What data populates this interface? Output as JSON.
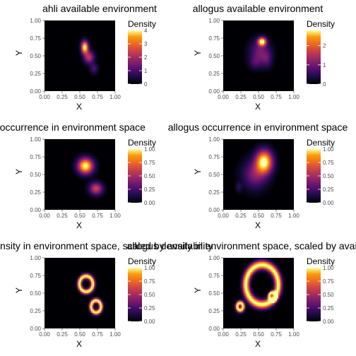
{
  "chart_data": [
    {
      "type": "heatmap",
      "title": "ahli available environment",
      "xlabel": "X",
      "ylabel": "Y",
      "xlim": [
        0,
        1
      ],
      "ylim": [
        0,
        1
      ],
      "x_ticks": [
        "0.00",
        "0.25",
        "0.50",
        "0.75",
        "1.00"
      ],
      "y_ticks": [
        "0.00",
        "0.25",
        "0.50",
        "0.75",
        "1.00"
      ],
      "legend": {
        "title": "Density",
        "range": [
          0,
          4
        ],
        "ticks": [
          "0",
          "1",
          "2",
          "3",
          "4"
        ]
      },
      "hotspots": [
        {
          "x": 0.57,
          "y": 0.62,
          "sx": 0.035,
          "sy": 0.06,
          "density": 4.0
        },
        {
          "x": 0.63,
          "y": 0.48,
          "sx": 0.05,
          "sy": 0.06,
          "density": 2.0
        },
        {
          "x": 0.7,
          "y": 0.32,
          "sx": 0.04,
          "sy": 0.05,
          "density": 0.9
        }
      ]
    },
    {
      "type": "heatmap",
      "title": "allogus available environment",
      "xlabel": "X",
      "ylabel": "Y",
      "xlim": [
        0,
        1
      ],
      "ylim": [
        0,
        1
      ],
      "x_ticks": [
        "0.00",
        "0.25",
        "0.50",
        "0.75",
        "1.00"
      ],
      "y_ticks": [
        "0.00",
        "0.25",
        "0.50",
        "0.75",
        "1.00"
      ],
      "legend": {
        "title": "Density",
        "range": [
          0,
          2.8
        ],
        "ticks": [
          "0",
          "1",
          "2"
        ]
      },
      "hotspots": [
        {
          "x": 0.55,
          "y": 0.7,
          "sx": 0.04,
          "sy": 0.04,
          "density": 2.8
        },
        {
          "x": 0.52,
          "y": 0.55,
          "sx": 0.1,
          "sy": 0.12,
          "density": 0.9
        },
        {
          "x": 0.45,
          "y": 0.4,
          "sx": 0.06,
          "sy": 0.06,
          "density": 0.4
        },
        {
          "x": 0.62,
          "y": 0.45,
          "sx": 0.05,
          "sy": 0.08,
          "density": 0.5
        }
      ]
    },
    {
      "type": "heatmap",
      "title": "ahli occurrence in environment space",
      "xlabel": "X",
      "ylabel": "Y",
      "xlim": [
        0,
        1
      ],
      "ylim": [
        0,
        1
      ],
      "x_ticks": [
        "0.00",
        "0.25",
        "0.50",
        "0.75",
        "1.00"
      ],
      "y_ticks": [
        "0.00",
        "0.25",
        "0.50",
        "0.75",
        "1.00"
      ],
      "legend": {
        "title": "Density",
        "range": [
          0,
          1
        ],
        "ticks": [
          "0.00",
          "0.25",
          "0.50",
          "0.75",
          "1.00"
        ]
      },
      "hotspots": [
        {
          "x": 0.58,
          "y": 0.62,
          "sx": 0.075,
          "sy": 0.075,
          "density": 1.0
        },
        {
          "x": 0.73,
          "y": 0.3,
          "sx": 0.065,
          "sy": 0.06,
          "density": 0.55
        }
      ]
    },
    {
      "type": "heatmap",
      "title": "allogus occurrence in environment space",
      "xlabel": "X",
      "ylabel": "Y",
      "xlim": [
        0,
        1
      ],
      "ylim": [
        0,
        1
      ],
      "x_ticks": [
        "0.00",
        "0.25",
        "0.50",
        "0.75",
        "1.00"
      ],
      "y_ticks": [
        "0.00",
        "0.25",
        "0.50",
        "0.75",
        "1.00"
      ],
      "legend": {
        "title": "Density",
        "range": [
          0,
          1
        ],
        "ticks": [
          "0.00",
          "0.25",
          "0.50",
          "0.75",
          "1.00"
        ]
      },
      "hotspots": [
        {
          "x": 0.58,
          "y": 0.68,
          "sx": 0.08,
          "sy": 0.11,
          "density": 1.0
        },
        {
          "x": 0.45,
          "y": 0.5,
          "sx": 0.12,
          "sy": 0.14,
          "density": 0.35
        },
        {
          "x": 0.22,
          "y": 0.32,
          "sx": 0.03,
          "sy": 0.05,
          "density": 0.12
        }
      ]
    },
    {
      "type": "heatmap",
      "title": "ahli density in environment space, scaled by availability",
      "xlabel": "X",
      "ylabel": "Y",
      "xlim": [
        0,
        1
      ],
      "ylim": [
        0,
        1
      ],
      "x_ticks": [
        "0.00",
        "0.25",
        "0.50",
        "0.75",
        "1.00"
      ],
      "y_ticks": [
        "0.00",
        "0.25",
        "0.50",
        "0.75",
        "1.00"
      ],
      "legend": {
        "title": "Density",
        "range": [
          0,
          1
        ],
        "ticks": [
          "0.00",
          "0.25",
          "0.50",
          "0.75",
          "1.00"
        ]
      },
      "rings": [
        {
          "x": 0.59,
          "y": 0.63,
          "rx": 0.095,
          "ry": 0.11,
          "w": 0.022
        },
        {
          "x": 0.73,
          "y": 0.31,
          "rx": 0.07,
          "ry": 0.085,
          "w": 0.02
        }
      ]
    },
    {
      "type": "heatmap",
      "title": "allogus density in environment space, scaled by availability",
      "xlabel": "X",
      "ylabel": "Y",
      "xlim": [
        0,
        1
      ],
      "ylim": [
        0,
        1
      ],
      "x_ticks": [
        "0.00",
        "0.25",
        "0.50",
        "0.75",
        "1.00"
      ],
      "y_ticks": [
        "0.00",
        "0.25",
        "0.50",
        "0.75",
        "1.00"
      ],
      "legend": {
        "title": "Density",
        "range": [
          0,
          1
        ],
        "ticks": [
          "0.00",
          "0.25",
          "0.50",
          "0.75",
          "1.00"
        ]
      },
      "rings": [
        {
          "x": 0.55,
          "y": 0.62,
          "rx": 0.23,
          "ry": 0.28,
          "w": 0.035
        },
        {
          "x": 0.24,
          "y": 0.31,
          "rx": 0.04,
          "ry": 0.05,
          "w": 0.02
        },
        {
          "x": 0.7,
          "y": 0.45,
          "rx": 0.05,
          "ry": 0.06,
          "w": 0.015
        }
      ]
    }
  ]
}
